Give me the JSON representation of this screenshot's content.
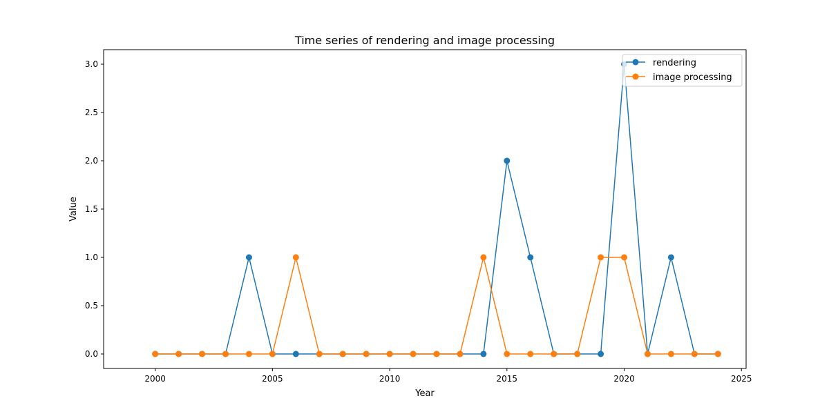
{
  "chart_data": {
    "type": "line",
    "title": "Time series of rendering and image processing",
    "xlabel": "Year",
    "ylabel": "Value",
    "xlim": [
      1997.8,
      2025.2
    ],
    "ylim": [
      -0.15,
      3.15
    ],
    "xticks": [
      2000,
      2005,
      2010,
      2015,
      2020,
      2025
    ],
    "xtick_labels": [
      "2000",
      "2005",
      "2010",
      "2015",
      "2020",
      "2025"
    ],
    "yticks": [
      0.0,
      0.5,
      1.0,
      1.5,
      2.0,
      2.5,
      3.0
    ],
    "ytick_labels": [
      "0.0",
      "0.5",
      "1.0",
      "1.5",
      "2.0",
      "2.5",
      "3.0"
    ],
    "grid": false,
    "legend_position": "top-right",
    "x": [
      2000,
      2001,
      2002,
      2003,
      2004,
      2005,
      2006,
      2007,
      2008,
      2009,
      2010,
      2011,
      2012,
      2013,
      2014,
      2015,
      2016,
      2017,
      2018,
      2019,
      2020,
      2021,
      2022,
      2023,
      2024
    ],
    "series": [
      {
        "name": "rendering",
        "color": "#1f77b4",
        "marker": "circle",
        "values": [
          0,
          0,
          0,
          0,
          1,
          0,
          0,
          0,
          0,
          0,
          0,
          0,
          0,
          0,
          0,
          2,
          1,
          0,
          0,
          0,
          3,
          0,
          1,
          0,
          0
        ]
      },
      {
        "name": "image processing",
        "color": "#ff7f0e",
        "marker": "circle",
        "values": [
          0,
          0,
          0,
          0,
          0,
          0,
          1,
          0,
          0,
          0,
          0,
          0,
          0,
          0,
          1,
          0,
          0,
          0,
          0,
          1,
          1,
          0,
          0,
          0,
          0
        ]
      }
    ]
  }
}
